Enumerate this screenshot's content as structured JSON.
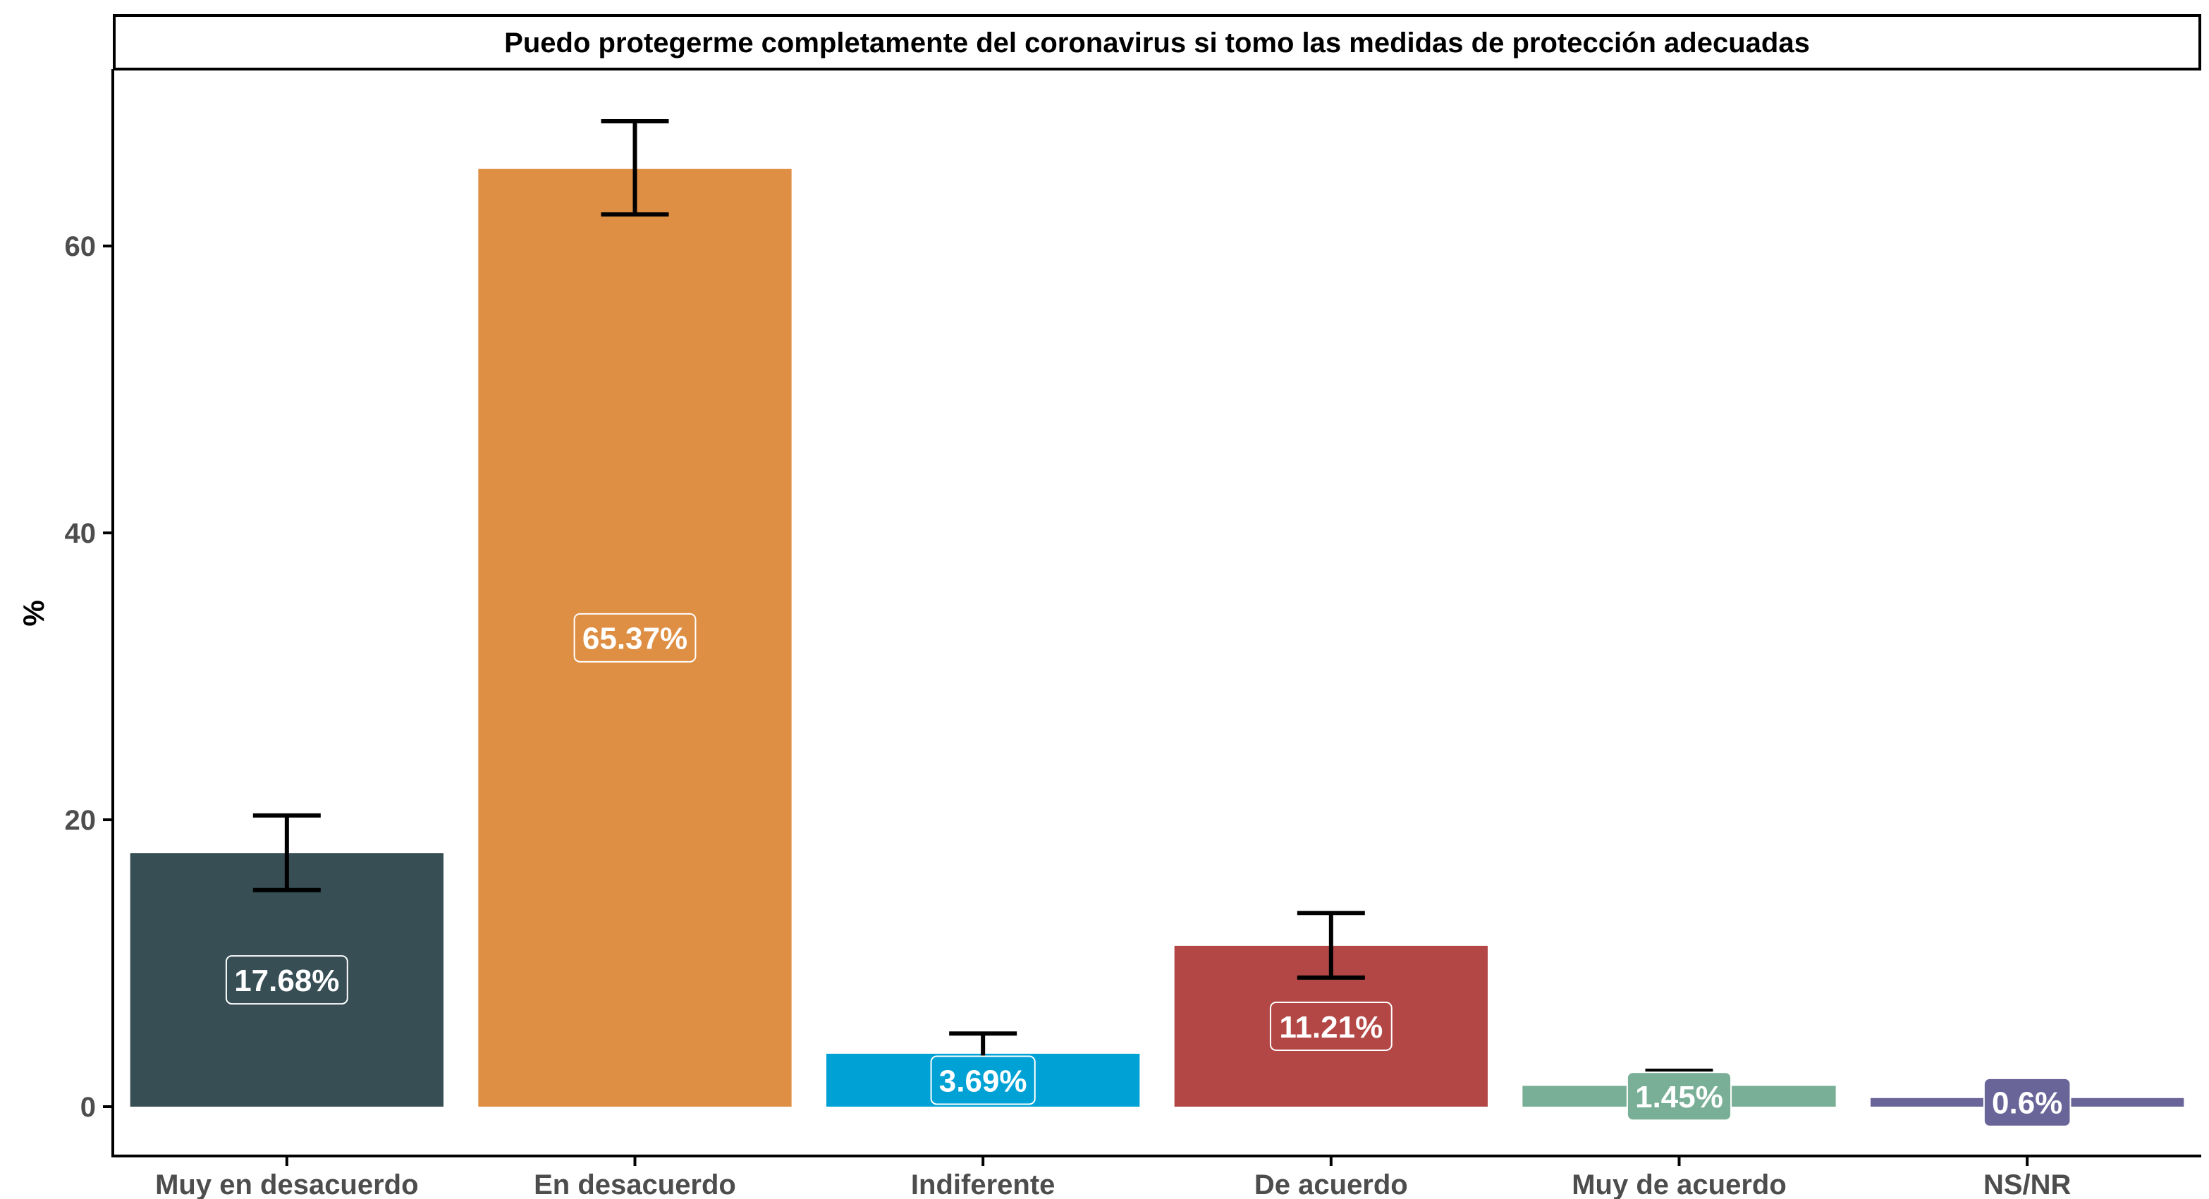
{
  "chart_data": {
    "type": "bar",
    "title": "Puedo protegerme completamente del coronavirus si tomo las medidas de protección adecuadas",
    "xlabel": "",
    "ylabel": "%",
    "ylim": [
      0,
      72
    ],
    "yticks": [
      0,
      20,
      40,
      60
    ],
    "grid": false,
    "categories": [
      "Muy en desacuerdo",
      "En desacuerdo",
      "Indiferente",
      "De acuerdo",
      "Muy de acuerdo",
      "NS/NR"
    ],
    "values": [
      17.68,
      65.37,
      3.69,
      11.21,
      1.45,
      0.6
    ],
    "labels": [
      "17.68%",
      "65.37%",
      "3.69%",
      "11.21%",
      "1.45%",
      "0.6%"
    ],
    "error_low": [
      15.1,
      62.2,
      2.7,
      9.0,
      0.95,
      0.35
    ],
    "error_high": [
      20.3,
      68.7,
      5.1,
      13.5,
      2.5,
      0.9
    ],
    "colors": [
      "#374e55",
      "#df8f44",
      "#00a1d5",
      "#b24745",
      "#79af97",
      "#6a6599"
    ]
  }
}
